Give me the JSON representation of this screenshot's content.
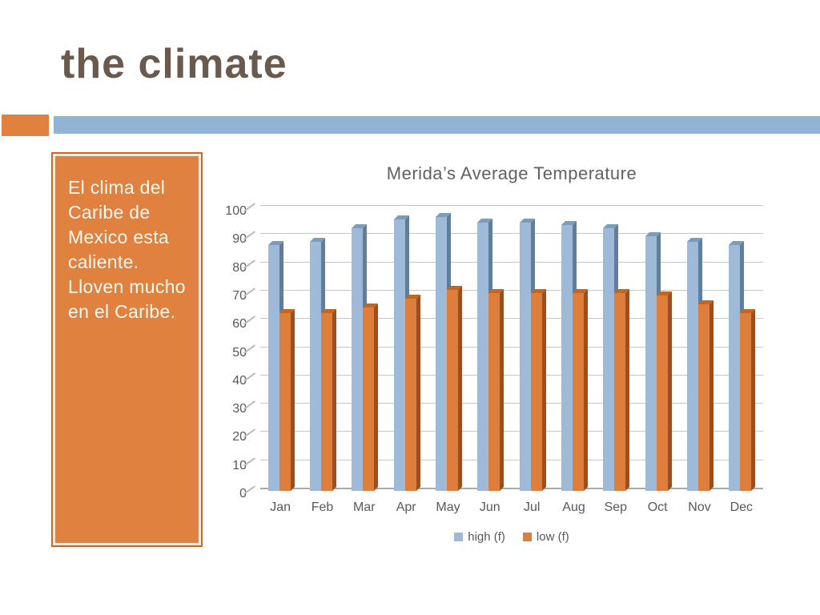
{
  "slide": {
    "title": "the climate"
  },
  "textbox": {
    "lines": [
      "El clima del",
      "Caribe de",
      "Mexico esta",
      "caliente.",
      "Lloven mucho",
      "en el Caribe."
    ]
  },
  "chart_data": {
    "type": "bar",
    "title": "Merida’s Average Temperature",
    "categories": [
      "Jan",
      "Feb",
      "Mar",
      "Apr",
      "May",
      "Jun",
      "Jul",
      "Aug",
      "Sep",
      "Oct",
      "Nov",
      "Dec"
    ],
    "series": [
      {
        "name": "high (f)",
        "values": [
          87,
          88,
          93,
          96,
          97,
          95,
          95,
          94,
          93,
          90,
          88,
          87
        ],
        "color": "#9fbad8",
        "color_side": "#5f7e9c",
        "color_top": "#7e9cba"
      },
      {
        "name": "low (f)",
        "values": [
          63,
          63,
          65,
          68,
          71,
          70,
          70,
          70,
          70,
          69,
          66,
          63
        ],
        "color": "#de7e3d",
        "color_side": "#9e4e1c",
        "color_top": "#c4661f"
      }
    ],
    "xlabel": "",
    "ylabel": "",
    "ylim": [
      0,
      100
    ],
    "ytick_step": 10,
    "grid": true,
    "style": "3d",
    "legend_position": "bottom"
  },
  "colors": {
    "title_text": "#6a5a4e",
    "band_blue": "#92b4d4",
    "accent_orange": "#e0813f",
    "textbox_fill": "#e0813f",
    "textbox_border": "#c8682c",
    "textbox_inner_line": "#f7ead9",
    "textbox_text": "#fdf8f0",
    "chart_text": "#595959",
    "gridline": "#c6c6c6"
  }
}
